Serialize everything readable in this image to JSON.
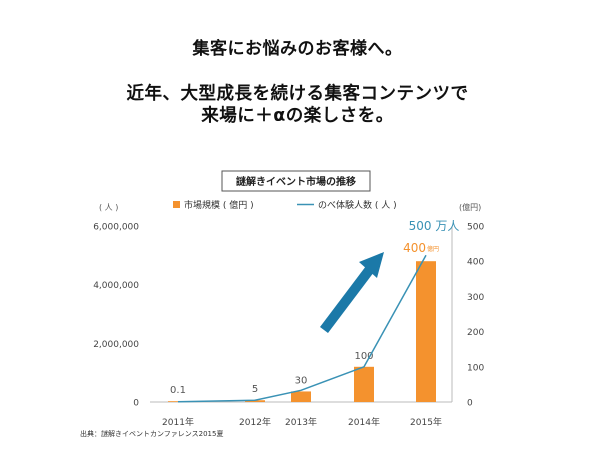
{
  "headline": {
    "line1": "集客にお悩みのお客様へ。",
    "line2": "近年、大型成長を続ける集客コンテンツで",
    "line3": "来場に＋αの楽しさを。"
  },
  "chart_data": {
    "type": "bar",
    "title": "謎解きイベント市場の推移",
    "categories": [
      "2011年",
      "2012年",
      "2013年",
      "2014年",
      "2015年"
    ],
    "bar_series": {
      "name": "市場規模 ( 億円 )",
      "values": [
        0.1,
        5,
        30,
        100,
        400
      ],
      "labels": [
        "0.1",
        "5",
        "30",
        "100",
        "400"
      ],
      "label_unit": "億円",
      "color": "#F4922E",
      "axis": "right"
    },
    "line_series": {
      "name": "のべ体験人数 ( 人 )",
      "values": [
        10000,
        60000,
        400000,
        1200000,
        5000000
      ],
      "end_label": "500 万人",
      "color": "#3A92B5",
      "axis": "left"
    },
    "left_axis": {
      "unit": "( 人 )",
      "ylim": [
        0,
        6000000
      ],
      "ticks": [
        0,
        2000000,
        4000000,
        6000000
      ],
      "tick_labels": [
        "0",
        "2,000,000",
        "4,000,000",
        "6,000,000"
      ]
    },
    "right_axis": {
      "unit": "(億円)",
      "ylim": [
        0,
        500
      ],
      "ticks": [
        0,
        100,
        200,
        300,
        400,
        500
      ],
      "tick_labels": [
        "0",
        "100",
        "200",
        "300",
        "400",
        "500"
      ]
    },
    "grid": false,
    "legend_position": "top",
    "arrow_color": "#1B79A8",
    "source": "出典：謎解きイベントカンファレンス2015夏"
  }
}
